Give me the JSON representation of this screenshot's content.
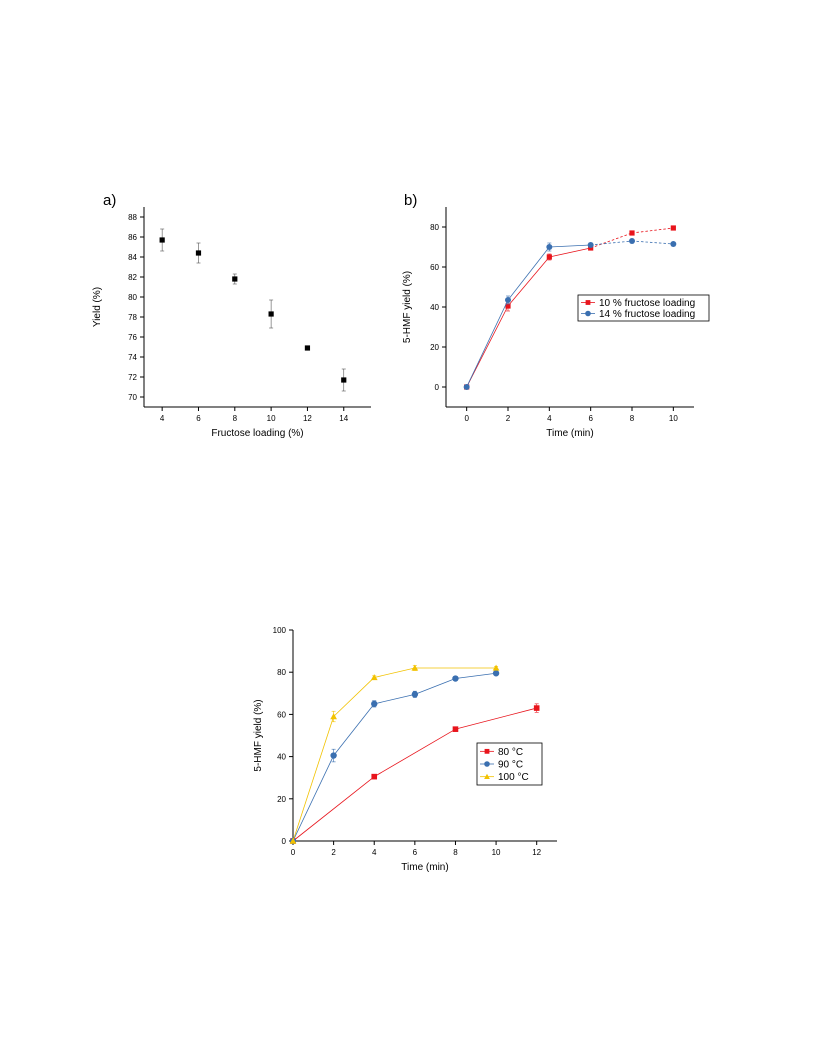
{
  "page": {
    "background": "#ffffff"
  },
  "chart_data": [
    {
      "panel_label": "a)",
      "type": "scatter",
      "xlabel": "Fructose loading (%)",
      "ylabel": "Yield (%)",
      "xlim": [
        3,
        15.5
      ],
      "ylim": [
        69,
        89
      ],
      "xticks": [
        4,
        6,
        8,
        10,
        12,
        14
      ],
      "yticks": [
        70,
        72,
        74,
        76,
        78,
        80,
        82,
        84,
        86,
        88
      ],
      "grid": false,
      "series": [
        {
          "color": "#000000",
          "marker": "square",
          "points": [
            {
              "x": 4,
              "y": 85.7,
              "err": 1.1
            },
            {
              "x": 6,
              "y": 84.4,
              "err": 1.0
            },
            {
              "x": 8,
              "y": 81.8,
              "err": 0.5
            },
            {
              "x": 10,
              "y": 78.3,
              "err": 1.4
            },
            {
              "x": 12,
              "y": 74.9,
              "err": 0.2
            },
            {
              "x": 14,
              "y": 71.7,
              "err": 1.1
            }
          ]
        }
      ]
    },
    {
      "panel_label": "b)",
      "type": "line",
      "xlabel": "Time (min)",
      "ylabel": "5-HMF yield (%)",
      "xlim": [
        -1,
        11
      ],
      "ylim": [
        -10,
        90
      ],
      "xticks": [
        0,
        2,
        4,
        6,
        8,
        10
      ],
      "yticks": [
        0,
        20,
        40,
        60,
        80
      ],
      "grid": false,
      "legend_position": "center-right",
      "series": [
        {
          "name": "10 % fructose loading",
          "color": "#e8141c",
          "marker": "square",
          "points": [
            {
              "x": 0,
              "y": 0,
              "err": 0
            },
            {
              "x": 2,
              "y": 40.5,
              "err": 2.5
            },
            {
              "x": 4,
              "y": 65,
              "err": 1.5
            },
            {
              "x": 6,
              "y": 69.5,
              "err": 1
            },
            {
              "x": 8,
              "y": 77,
              "err": 0.8
            },
            {
              "x": 10,
              "y": 79.5,
              "err": 0.8
            }
          ],
          "dash_from_x": 6
        },
        {
          "name": "14 % fructose loading",
          "color": "#3a6fb0",
          "marker": "circle",
          "points": [
            {
              "x": 0,
              "y": 0,
              "err": 0
            },
            {
              "x": 2,
              "y": 43.5,
              "err": 2
            },
            {
              "x": 4,
              "y": 70,
              "err": 2
            },
            {
              "x": 6,
              "y": 71,
              "err": 1
            },
            {
              "x": 8,
              "y": 73,
              "err": 1
            },
            {
              "x": 10,
              "y": 71.5,
              "err": 0.8
            }
          ],
          "dash_from_x": 6
        }
      ]
    },
    {
      "panel_label": "",
      "type": "line",
      "xlabel": "Time (min)",
      "ylabel": "5-HMF yield (%)",
      "xlim": [
        0,
        13
      ],
      "ylim": [
        0,
        100
      ],
      "xticks": [
        0,
        2,
        4,
        6,
        8,
        10,
        12
      ],
      "yticks": [
        0,
        20,
        40,
        60,
        80,
        100
      ],
      "grid": false,
      "legend_position": "center-right",
      "series": [
        {
          "name": "80 °C",
          "color": "#e8141c",
          "marker": "square",
          "points": [
            {
              "x": 0,
              "y": 0,
              "err": 0
            },
            {
              "x": 4,
              "y": 30.5,
              "err": 0.8
            },
            {
              "x": 8,
              "y": 53,
              "err": 0.8
            },
            {
              "x": 12,
              "y": 63,
              "err": 2
            }
          ]
        },
        {
          "name": "90 °C",
          "color": "#3a6fb0",
          "marker": "circle",
          "points": [
            {
              "x": 0,
              "y": 0,
              "err": 0
            },
            {
              "x": 2,
              "y": 40.5,
              "err": 3
            },
            {
              "x": 4,
              "y": 65,
              "err": 1.5
            },
            {
              "x": 6,
              "y": 69.5,
              "err": 1.5
            },
            {
              "x": 8,
              "y": 77,
              "err": 1
            },
            {
              "x": 10,
              "y": 79.5,
              "err": 0.8
            }
          ]
        },
        {
          "name": "100 °C",
          "color": "#f2c200",
          "marker": "triangle",
          "points": [
            {
              "x": 0,
              "y": 0,
              "err": 0
            },
            {
              "x": 2,
              "y": 59,
              "err": 2.5
            },
            {
              "x": 4,
              "y": 77.5,
              "err": 0.8
            },
            {
              "x": 6,
              "y": 82,
              "err": 1.2
            },
            {
              "x": 10,
              "y": 82,
              "err": 0.8
            }
          ]
        }
      ]
    }
  ]
}
